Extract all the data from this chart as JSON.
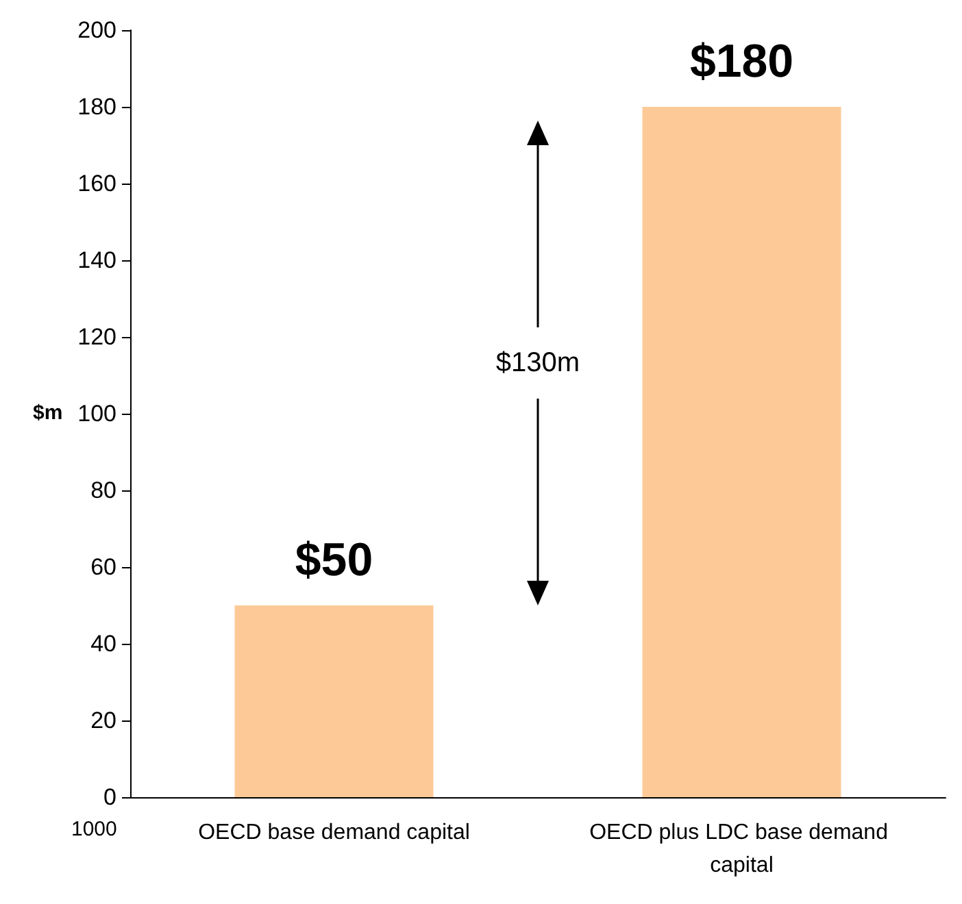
{
  "chart_data": {
    "type": "bar",
    "categories": [
      "OECD base demand capital",
      "OECD plus LDC base demand capital"
    ],
    "values": [
      50,
      180
    ],
    "color": "#fdca97",
    "value_labels": [
      "$50",
      "$180"
    ],
    "ylabel": "$m",
    "ylim": [
      0,
      200
    ],
    "yticks": [
      0,
      20,
      40,
      60,
      80,
      100,
      120,
      140,
      160,
      180,
      200
    ],
    "grid": false,
    "annotations": [
      "$130m",
      "1000"
    ]
  }
}
